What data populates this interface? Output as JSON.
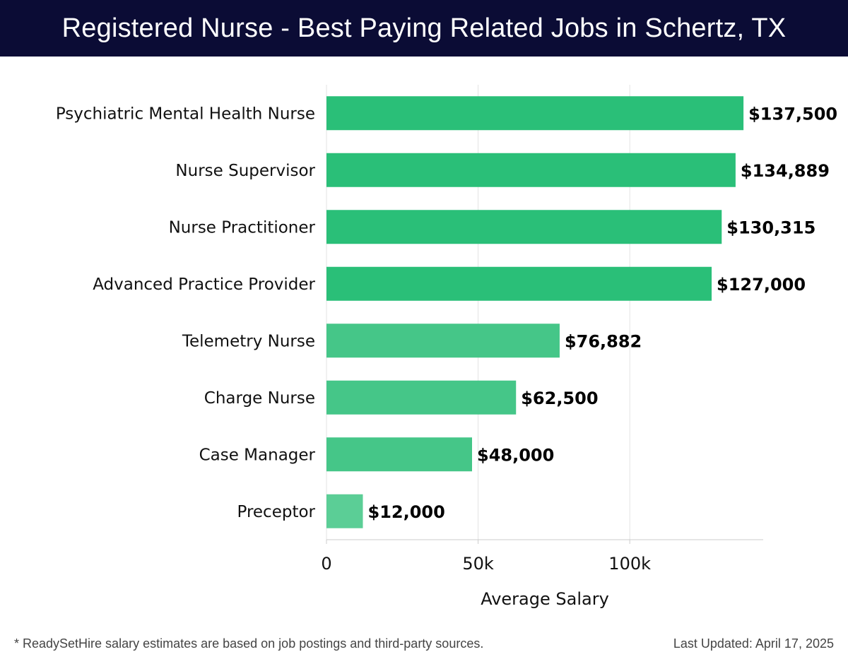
{
  "header": {
    "title": "Registered Nurse - Best Paying Related Jobs in Schertz, TX"
  },
  "footer": {
    "note": "* ReadySetHire salary estimates are based on job postings and third-party sources.",
    "updated": "Last Updated: April 17, 2025"
  },
  "chart_data": {
    "type": "bar",
    "orientation": "horizontal",
    "title": "Registered Nurse - Best Paying Related Jobs in Schertz, TX",
    "xlabel": "Average Salary",
    "ylabel": "",
    "xlim": [
      0,
      144000
    ],
    "xticks": [
      0,
      50000,
      100000
    ],
    "xtick_labels": [
      "0",
      "50k",
      "100k"
    ],
    "grid": "vertical",
    "categories": [
      "Psychiatric Mental Health Nurse",
      "Nurse Supervisor",
      "Nurse Practitioner",
      "Advanced Practice Provider",
      "Telemetry Nurse",
      "Charge Nurse",
      "Case Manager",
      "Preceptor"
    ],
    "values": [
      137500,
      134889,
      130315,
      127000,
      76882,
      62500,
      48000,
      12000
    ],
    "value_labels": [
      "$137,500",
      "$134,889",
      "$130,315",
      "$127,000",
      "$76,882",
      "$62,500",
      "$48,000",
      "$12,000"
    ],
    "colors": {
      "bar_high": "#2abf78",
      "bar_mid": "#45c688",
      "bar_low": "#5bce96",
      "grid": "#e3e3e3",
      "axis": "#cccccc"
    }
  }
}
